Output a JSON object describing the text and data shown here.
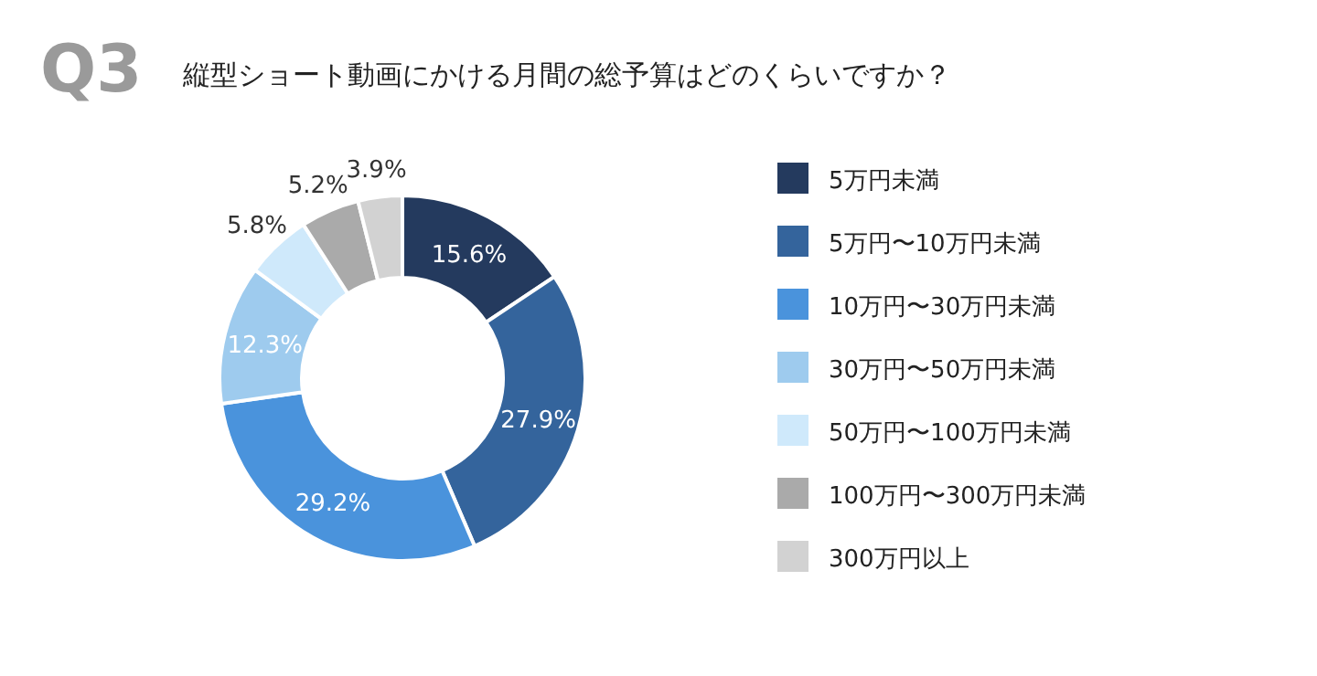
{
  "chart_data": {
    "type": "donut",
    "title": "縦型ショート動画にかける月間の総予算はどのくらいですか？",
    "annotations": [
      "Q3"
    ],
    "categories": [
      "5万円未満",
      "5万円〜10万円未満",
      "10万円〜30万円未満",
      "30万円〜50万円未満",
      "50万円〜100万円未満",
      "100万円〜300万円未満",
      "300万円以上"
    ],
    "values": [
      15.6,
      27.9,
      29.2,
      12.3,
      5.8,
      5.2,
      3.9
    ],
    "colors": [
      "#243a5e",
      "#34649c",
      "#4a93dc",
      "#9ecbee",
      "#cfe9fb",
      "#aaaaaa",
      "#d2d2d2"
    ],
    "value_labels": [
      "15.6%",
      "27.9%",
      "29.2%",
      "12.3%",
      "5.8%",
      "5.2%",
      "3.9%"
    ],
    "legend": "right"
  }
}
